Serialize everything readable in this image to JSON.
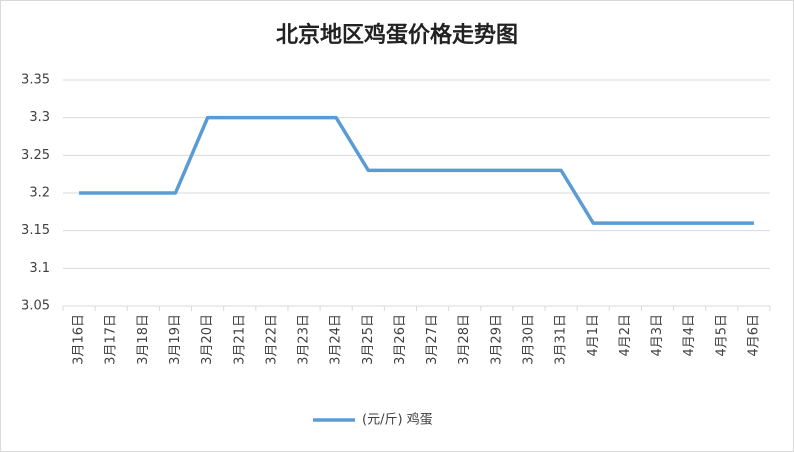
{
  "chart_data": {
    "type": "line",
    "title": "北京地区鸡蛋价格走势图",
    "categories": [
      "3月16日",
      "3月17日",
      "3月18日",
      "3月19日",
      "3月20日",
      "3月21日",
      "3月22日",
      "3月23日",
      "3月24日",
      "3月25日",
      "3月26日",
      "3月27日",
      "3月28日",
      "3月29日",
      "3月30日",
      "3月31日",
      "4月1日",
      "4月2日",
      "4月3日",
      "4月4日",
      "4月5日",
      "4月6日"
    ],
    "series": [
      {
        "name": "(元/斤) 鸡蛋",
        "color": "#5b9bd5",
        "values": [
          3.2,
          3.2,
          3.2,
          3.2,
          3.3,
          3.3,
          3.3,
          3.3,
          3.3,
          3.23,
          3.23,
          3.23,
          3.23,
          3.23,
          3.23,
          3.23,
          3.16,
          3.16,
          3.16,
          3.16,
          3.16,
          3.16
        ]
      }
    ],
    "ylim": [
      3.05,
      3.35
    ],
    "yticks": [
      3.05,
      3.1,
      3.15,
      3.2,
      3.25,
      3.3,
      3.35
    ],
    "grid": true,
    "legend": "bottom"
  }
}
